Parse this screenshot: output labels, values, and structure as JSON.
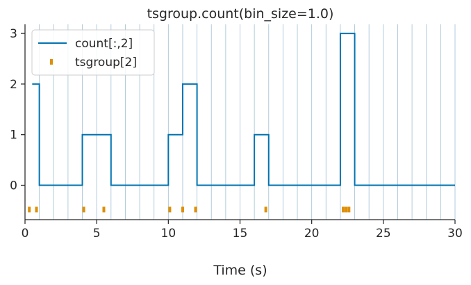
{
  "chart_data": {
    "type": "line",
    "title": "tsgroup.count(bin_size=1.0)",
    "xlabel": "Time (s)",
    "ylabel": "",
    "xlim": [
      0,
      30
    ],
    "ylim": [
      -0.68,
      3.18
    ],
    "x_ticks": [
      0,
      5,
      10,
      15,
      20,
      25,
      30
    ],
    "y_ticks": [
      0,
      1,
      2,
      3
    ],
    "bin_size": 1.0,
    "bin_edges": [
      0,
      1,
      2,
      3,
      4,
      5,
      6,
      7,
      8,
      9,
      10,
      11,
      12,
      13,
      14,
      15,
      16,
      17,
      18,
      19,
      20,
      21,
      22,
      23,
      24,
      25,
      26,
      27,
      28,
      29,
      30
    ],
    "grid": false,
    "legend_position": "top-left",
    "colors": {
      "count": "#0173b2",
      "events": "#de8f05",
      "bin_edges": "#a9c6d8",
      "axes": "#262626"
    },
    "series": [
      {
        "name": "count[:,2]",
        "style": "step",
        "x": [
          0.5,
          1,
          2,
          3,
          4,
          5,
          6,
          7,
          8,
          9,
          10,
          11,
          12,
          13,
          14,
          15,
          16,
          17,
          18,
          19,
          20,
          21,
          22,
          23,
          24,
          25,
          26,
          27,
          28,
          29,
          30
        ],
        "values": [
          2,
          0,
          0,
          0,
          1,
          1,
          0,
          0,
          0,
          0,
          1,
          2,
          0,
          0,
          0,
          0,
          1,
          0,
          0,
          0,
          0,
          0,
          3,
          0,
          0,
          0,
          0,
          0,
          0,
          0,
          0
        ]
      },
      {
        "name": "tsgroup[2]",
        "style": "event",
        "y": -0.48,
        "times": [
          0.3,
          0.8,
          4.1,
          5.5,
          10.1,
          11.0,
          11.9,
          16.8,
          22.2,
          22.4,
          22.6
        ]
      }
    ]
  }
}
